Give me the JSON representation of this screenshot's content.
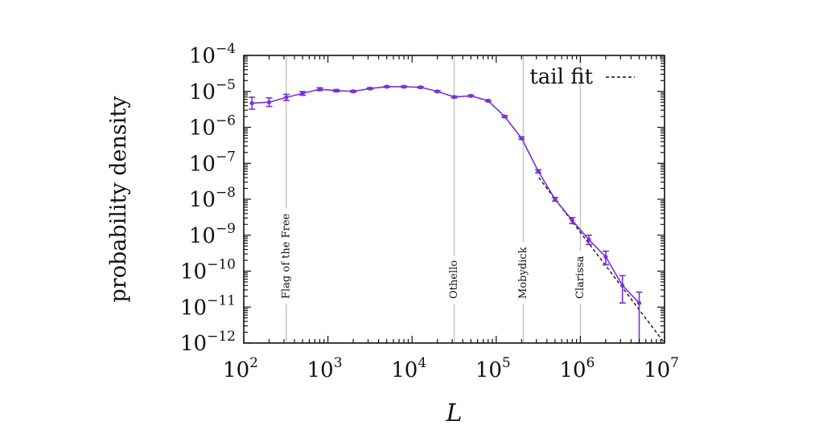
{
  "chart_data": {
    "type": "line",
    "xlabel": "L",
    "ylabel": "probability density",
    "x_scale": "log",
    "y_scale": "log",
    "xlim": [
      100,
      10000000
    ],
    "ylim": [
      1e-12,
      0.0001
    ],
    "x_ticks": [
      {
        "value": 100,
        "base": "10",
        "exp": "2"
      },
      {
        "value": 1000,
        "base": "10",
        "exp": "3"
      },
      {
        "value": 10000,
        "base": "10",
        "exp": "4"
      },
      {
        "value": 100000,
        "base": "10",
        "exp": "5"
      },
      {
        "value": 1000000,
        "base": "10",
        "exp": "6"
      },
      {
        "value": 10000000,
        "base": "10",
        "exp": "7"
      }
    ],
    "y_ticks": [
      {
        "value": 0.0001,
        "base": "10",
        "exp": "−4"
      },
      {
        "value": 1e-05,
        "base": "10",
        "exp": "−5"
      },
      {
        "value": 1e-06,
        "base": "10",
        "exp": "−6"
      },
      {
        "value": 1e-07,
        "base": "10",
        "exp": "−7"
      },
      {
        "value": 1e-08,
        "base": "10",
        "exp": "−8"
      },
      {
        "value": 1e-09,
        "base": "10",
        "exp": "−9"
      },
      {
        "value": 1e-10,
        "base": "10",
        "exp": "−10"
      },
      {
        "value": 1e-11,
        "base": "10",
        "exp": "−11"
      },
      {
        "value": 1e-12,
        "base": "10",
        "exp": "−12"
      }
    ],
    "series": [
      {
        "color": "#7b2fd6",
        "points": [
          {
            "x": 125,
            "y": 4.7e-06,
            "lo": 3.2e-06,
            "hi": 6.9e-06
          },
          {
            "x": 200,
            "y": 5e-06,
            "lo": 3.8e-06,
            "hi": 6.6e-06
          },
          {
            "x": 320,
            "y": 6.8e-06,
            "lo": 5.6e-06,
            "hi": 8.3e-06
          },
          {
            "x": 500,
            "y": 8.8e-06,
            "lo": 7.8e-06,
            "hi": 9.9e-06
          },
          {
            "x": 800,
            "y": 1.15e-05,
            "lo": 1.05e-05,
            "hi": 1.26e-05
          },
          {
            "x": 1260,
            "y": 1.05e-05,
            "lo": 9.8e-06,
            "hi": 1.12e-05
          },
          {
            "x": 2000,
            "y": 1e-05,
            "lo": 9.5e-06,
            "hi": 1.06e-05
          },
          {
            "x": 3160,
            "y": 1.2e-05,
            "lo": 1.14e-05,
            "hi": 1.26e-05
          },
          {
            "x": 5000,
            "y": 1.35e-05,
            "lo": 1.29e-05,
            "hi": 1.41e-05
          },
          {
            "x": 8000,
            "y": 1.35e-05,
            "lo": 1.29e-05,
            "hi": 1.41e-05
          },
          {
            "x": 12600,
            "y": 1.3e-05,
            "lo": 1.24e-05,
            "hi": 1.36e-05
          },
          {
            "x": 20000,
            "y": 1e-05,
            "lo": 9.5e-06,
            "hi": 1.05e-05
          },
          {
            "x": 31600,
            "y": 7e-06,
            "lo": 6.6e-06,
            "hi": 7.4e-06
          },
          {
            "x": 50000,
            "y": 7.5e-06,
            "lo": 7.1e-06,
            "hi": 7.9e-06
          },
          {
            "x": 80000,
            "y": 5.5e-06,
            "lo": 5.2e-06,
            "hi": 5.8e-06
          },
          {
            "x": 126000,
            "y": 2e-06,
            "lo": 1.88e-06,
            "hi": 2.12e-06
          },
          {
            "x": 200000,
            "y": 5e-07,
            "lo": 4.6e-07,
            "hi": 5.4e-07
          },
          {
            "x": 316000,
            "y": 6e-08,
            "lo": 5.4e-08,
            "hi": 6.6e-08
          },
          {
            "x": 500000,
            "y": 1e-08,
            "lo": 8.8e-09,
            "hi": 1.12e-08
          },
          {
            "x": 800000,
            "y": 2.6e-09,
            "lo": 2.1e-09,
            "hi": 3.1e-09
          },
          {
            "x": 1260000,
            "y": 7.5e-10,
            "lo": 5.5e-10,
            "hi": 1e-09
          },
          {
            "x": 2000000,
            "y": 2.5e-10,
            "lo": 1.5e-10,
            "hi": 3.6e-10
          },
          {
            "x": 3160000,
            "y": 4e-11,
            "lo": 1.3e-11,
            "hi": 7.5e-11
          },
          {
            "x": 5000000,
            "y": 1.3e-11,
            "lo": 1e-12,
            "hi": 2.6e-11
          }
        ]
      }
    ],
    "fit": {
      "label": "tail fit",
      "style": "dashed",
      "color": "#111111",
      "points": [
        {
          "x": 320000,
          "y": 4e-08
        },
        {
          "x": 10000000,
          "y": 1e-12
        }
      ]
    },
    "reference_lines": [
      {
        "x": 320,
        "label": "Flag of the Free"
      },
      {
        "x": 31600,
        "label": "Othello"
      },
      {
        "x": 210000,
        "label": "Mobydick"
      },
      {
        "x": 1000000,
        "label": "Clarissa"
      }
    ],
    "legend_position": "top-right",
    "grid": false
  }
}
